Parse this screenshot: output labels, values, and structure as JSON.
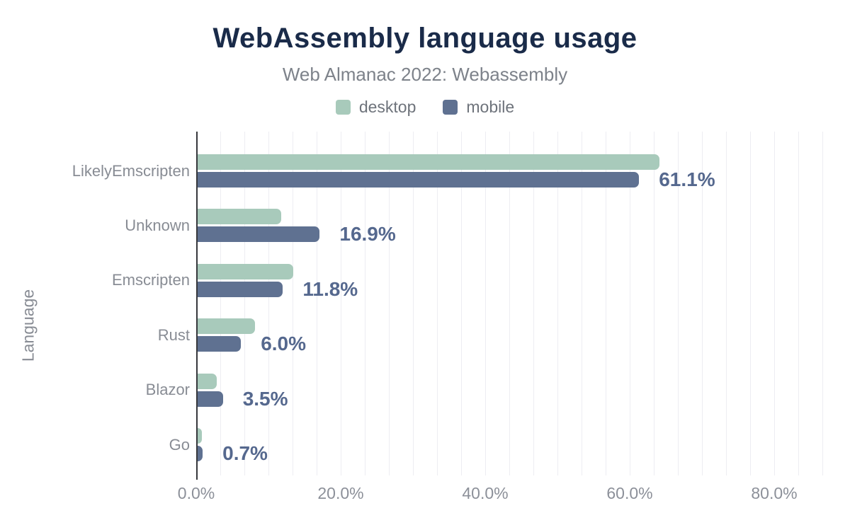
{
  "chart_data": {
    "type": "bar",
    "orientation": "horizontal",
    "title": "WebAssembly language usage",
    "subtitle": "Web Almanac 2022: Webassembly",
    "ylabel": "Language",
    "xlabel": "",
    "categories": [
      "LikelyEmscripten",
      "Unknown",
      "Emscripten",
      "Rust",
      "Blazor",
      "Go"
    ],
    "series": [
      {
        "name": "desktop",
        "color": "#a8cabb",
        "values": [
          63.9,
          11.6,
          13.2,
          7.9,
          2.6,
          0.6
        ]
      },
      {
        "name": "mobile",
        "color": "#5f7191",
        "values": [
          61.1,
          16.9,
          11.8,
          6.0,
          3.5,
          0.7
        ]
      }
    ],
    "data_labels": [
      "61.1%",
      "16.9%",
      "11.8%",
      "6.0%",
      "3.5%",
      "0.7%"
    ],
    "data_labels_series": "mobile",
    "x_ticks_percent": [
      0,
      20,
      40,
      60,
      80
    ],
    "x_tick_labels": [
      "0.0%",
      "20.0%",
      "40.0%",
      "60.0%",
      "80.0%"
    ],
    "xlim": [
      0,
      88
    ],
    "grid": "vertical-minor-lines",
    "legend_position": "top-center"
  },
  "colors": {
    "title": "#1a2b49",
    "subtitle": "#7d828a",
    "axis_labels": "#8c9099",
    "category_labels": "#888c94",
    "data_label": "#55688e",
    "axis_line": "#37383c",
    "gridline": "#ededf2",
    "background": "#ffffff"
  }
}
